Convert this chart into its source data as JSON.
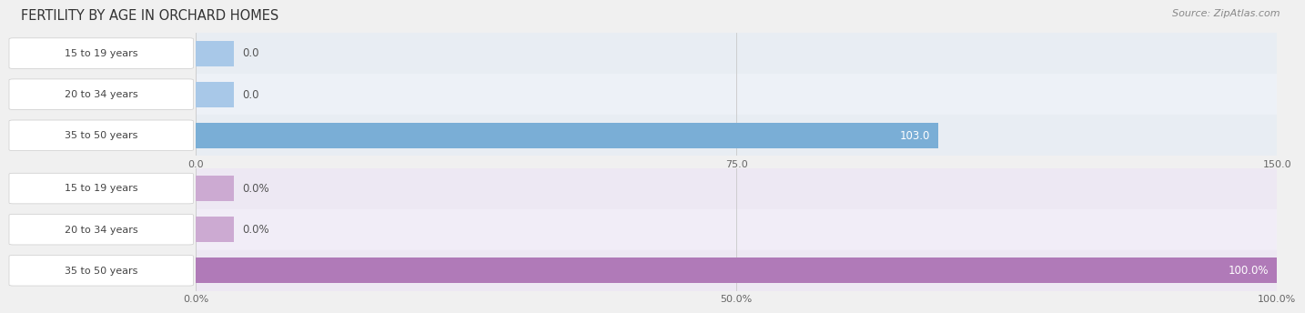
{
  "title": "FERTILITY BY AGE IN ORCHARD HOMES",
  "source": "Source: ZipAtlas.com",
  "top_chart": {
    "categories": [
      "15 to 19 years",
      "20 to 34 years",
      "35 to 50 years"
    ],
    "values": [
      0.0,
      0.0,
      103.0
    ],
    "xlim": [
      0,
      150
    ],
    "xticks": [
      0.0,
      75.0,
      150.0
    ],
    "xtick_labels": [
      "0.0",
      "75.0",
      "150.0"
    ],
    "bar_color": "#7aaed6",
    "bar_color_zero": "#a8c8e8",
    "bar_height": 0.62,
    "row_colors": [
      "#e8edf3",
      "#edf1f7"
    ],
    "value_labels": [
      "0.0",
      "0.0",
      "103.0"
    ]
  },
  "bottom_chart": {
    "categories": [
      "15 to 19 years",
      "20 to 34 years",
      "35 to 50 years"
    ],
    "values": [
      0.0,
      0.0,
      100.0
    ],
    "xlim": [
      0,
      100
    ],
    "xticks": [
      0.0,
      50.0,
      100.0
    ],
    "xtick_labels": [
      "0.0%",
      "50.0%",
      "100.0%"
    ],
    "bar_color": "#b07ab8",
    "bar_color_zero": "#ccaad2",
    "bar_height": 0.62,
    "row_colors": [
      "#ede8f3",
      "#f1edf7"
    ],
    "value_labels": [
      "0.0%",
      "0.0%",
      "100.0%"
    ]
  },
  "bg_color": "#f0f0f0",
  "label_box_color": "#ffffff",
  "label_box_edge": "#cccccc",
  "title_color": "#333333",
  "source_color": "#888888",
  "tick_color": "#666666",
  "label_fontsize": 8.0,
  "title_fontsize": 10.5,
  "source_fontsize": 8.0,
  "tick_fontsize": 8.0
}
